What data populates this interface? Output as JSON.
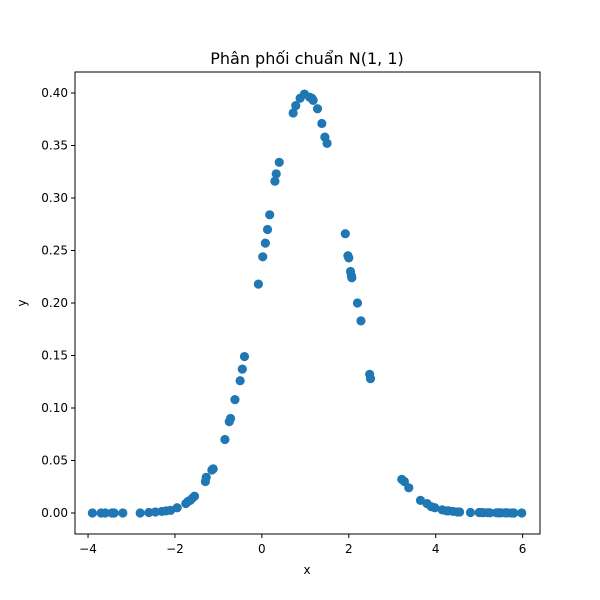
{
  "chart_data": {
    "type": "scatter",
    "title": "Phân phối chuẩn N(1, 1)",
    "xlabel": "x",
    "ylabel": "y",
    "xlim": [
      -4.3,
      6.4
    ],
    "ylim": [
      -0.02,
      0.42
    ],
    "xticks": [
      -4,
      -2,
      0,
      2,
      4,
      6
    ],
    "xtick_labels": [
      "−4",
      "−2",
      "0",
      "2",
      "4",
      "6"
    ],
    "yticks": [
      0.0,
      0.05,
      0.1,
      0.15,
      0.2,
      0.25,
      0.3,
      0.35,
      0.4
    ],
    "ytick_labels": [
      "0.00",
      "0.05",
      "0.10",
      "0.15",
      "0.20",
      "0.25",
      "0.30",
      "0.35",
      "0.40"
    ],
    "grid": false,
    "marker_color": "#1f77b4",
    "x": [
      -3.9,
      -3.7,
      -3.6,
      -3.45,
      -3.4,
      -3.2,
      -2.8,
      -2.6,
      -2.45,
      -2.3,
      -2.2,
      -2.1,
      -1.95,
      -1.75,
      -1.7,
      -1.65,
      -1.6,
      -1.55,
      -1.3,
      -1.28,
      -1.15,
      -1.12,
      -0.85,
      -0.75,
      -0.72,
      -0.62,
      -0.5,
      -0.45,
      -0.4,
      -0.08,
      0.02,
      0.08,
      0.13,
      0.18,
      0.3,
      0.33,
      0.4,
      0.72,
      0.78,
      0.88,
      0.98,
      1.1,
      1.15,
      1.18,
      1.28,
      1.38,
      1.45,
      1.5,
      1.92,
      1.98,
      2.0,
      2.04,
      2.06,
      2.07,
      2.2,
      2.28,
      2.48,
      2.5,
      3.22,
      3.28,
      3.38,
      3.65,
      3.8,
      3.9,
      3.98,
      4.15,
      4.25,
      4.3,
      4.4,
      4.5,
      4.55,
      4.8,
      5.0,
      5.05,
      5.1,
      5.2,
      5.25,
      5.4,
      5.45,
      5.5,
      5.6,
      5.65,
      5.75,
      5.8,
      5.98
    ],
    "y": [
      0.0,
      0.0,
      0.0,
      0.0,
      0.0,
      0.0,
      0.0,
      0.0005,
      0.001,
      0.0015,
      0.002,
      0.0025,
      0.005,
      0.009,
      0.011,
      0.012,
      0.014,
      0.016,
      0.03,
      0.034,
      0.041,
      0.042,
      0.07,
      0.087,
      0.09,
      0.108,
      0.126,
      0.137,
      0.149,
      0.218,
      0.244,
      0.257,
      0.27,
      0.284,
      0.316,
      0.323,
      0.334,
      0.381,
      0.388,
      0.395,
      0.399,
      0.396,
      0.395,
      0.393,
      0.385,
      0.371,
      0.358,
      0.352,
      0.266,
      0.245,
      0.243,
      0.23,
      0.226,
      0.224,
      0.2,
      0.183,
      0.132,
      0.128,
      0.032,
      0.03,
      0.024,
      0.012,
      0.009,
      0.006,
      0.005,
      0.003,
      0.002,
      0.002,
      0.0015,
      0.001,
      0.001,
      0.0005,
      0.0005,
      0.0004,
      0.0003,
      0.0003,
      0.0002,
      0.0002,
      0.0001,
      0.0001,
      0.0001,
      0.0001,
      0.0,
      0.0,
      0.0
    ]
  }
}
